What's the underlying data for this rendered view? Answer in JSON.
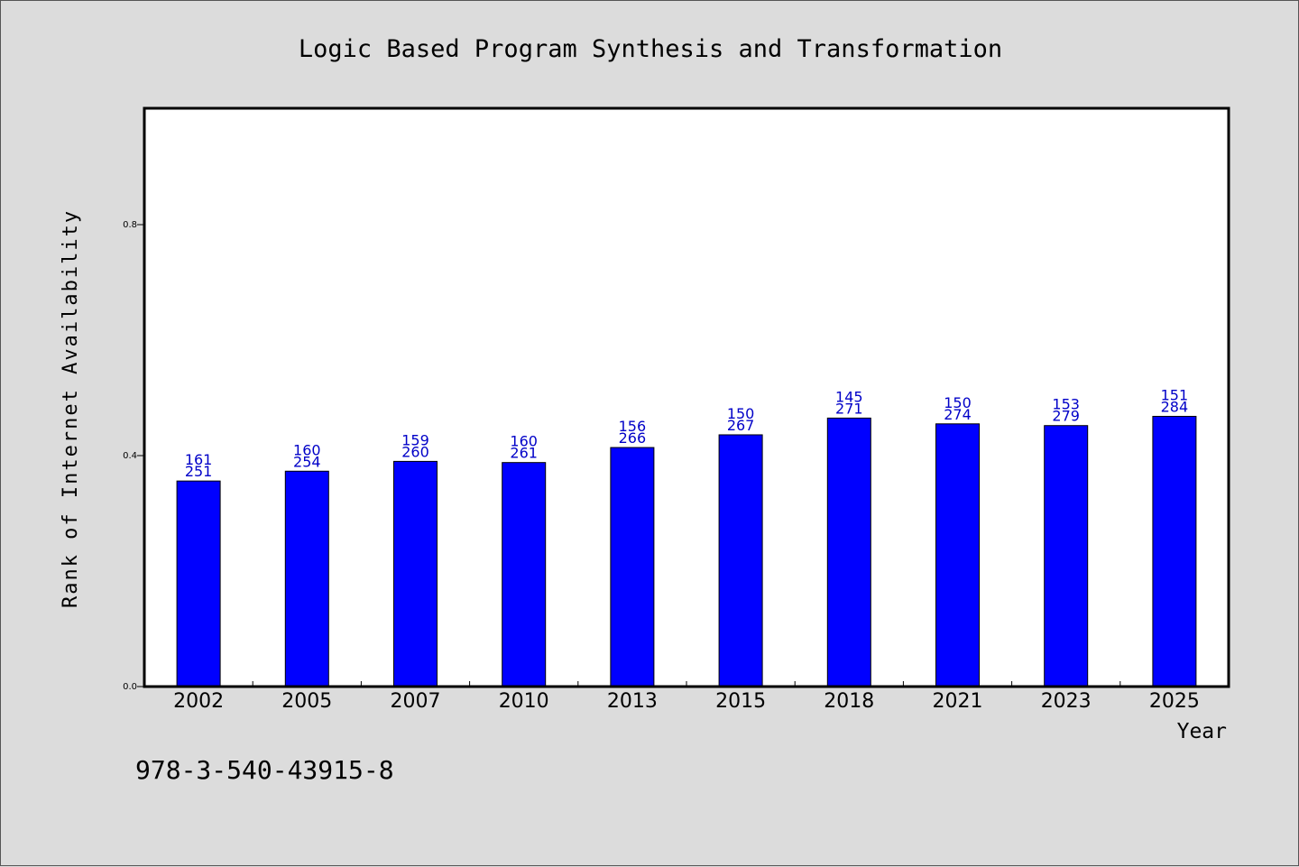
{
  "chart_data": {
    "type": "bar",
    "title": "Logic Based Program Synthesis and Transformation",
    "xlabel": "Year",
    "ylabel": "Rank of Internet Availability",
    "categories": [
      "2002",
      "2005",
      "2007",
      "2010",
      "2013",
      "2015",
      "2018",
      "2021",
      "2023",
      "2025"
    ],
    "values": [
      0.356,
      0.373,
      0.39,
      0.388,
      0.414,
      0.436,
      0.465,
      0.455,
      0.452,
      0.468
    ],
    "data_labels_top": [
      "161",
      "160",
      "159",
      "160",
      "156",
      "150",
      "145",
      "150",
      "153",
      "151"
    ],
    "data_labels_bottom": [
      "251",
      "254",
      "260",
      "261",
      "266",
      "267",
      "271",
      "274",
      "279",
      "284"
    ],
    "yticks": [
      0.0,
      0.4,
      0.8
    ],
    "ytick_labels": [
      "0.0",
      "0.4",
      "0.8"
    ],
    "ylim": [
      0,
      1.0
    ],
    "bar_color": "#0000ff",
    "label_color": "#0000c8",
    "grid": false
  },
  "footer": {
    "isbn": "978-3-540-43915-8"
  }
}
